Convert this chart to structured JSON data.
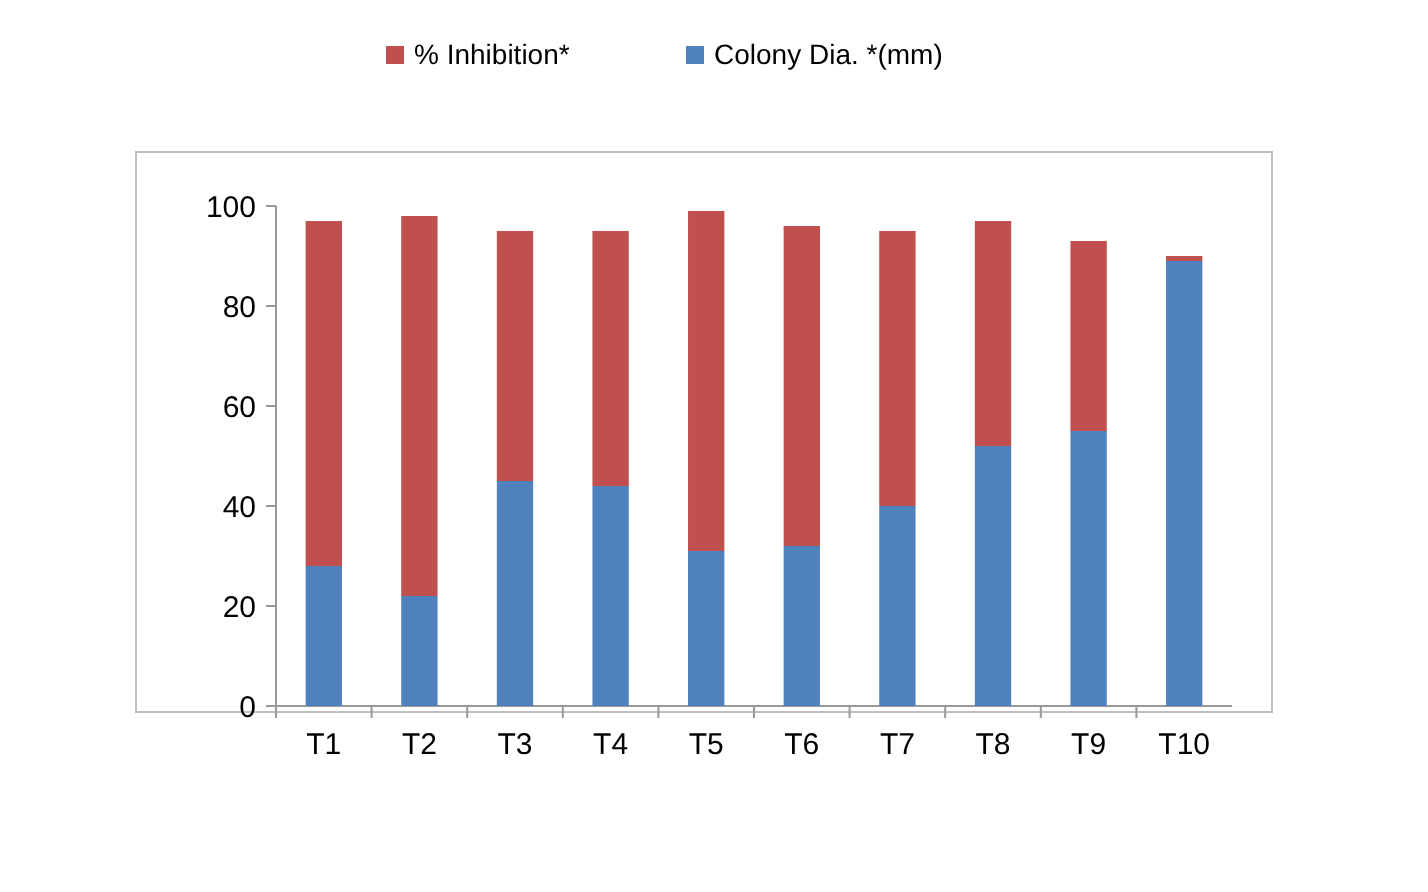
{
  "chart_data": {
    "type": "bar",
    "stacked": true,
    "categories": [
      "T1",
      "T2",
      "T3",
      "T4",
      "T5",
      "T6",
      "T7",
      "T8",
      "T9",
      "T10"
    ],
    "series": [
      {
        "name": "Colony Dia. *(mm)",
        "color": "#4f81bd",
        "values": [
          28,
          22,
          45,
          44,
          31,
          32,
          40,
          52,
          55,
          89
        ]
      },
      {
        "name": "% Inhibition*",
        "color": "#c0504d",
        "values": [
          69,
          76,
          50,
          51,
          68,
          64,
          55,
          45,
          38,
          1
        ]
      }
    ],
    "ylim": [
      0,
      100
    ],
    "yticks": [
      0,
      20,
      40,
      60,
      80,
      100
    ],
    "grid": false,
    "legend": "top"
  }
}
